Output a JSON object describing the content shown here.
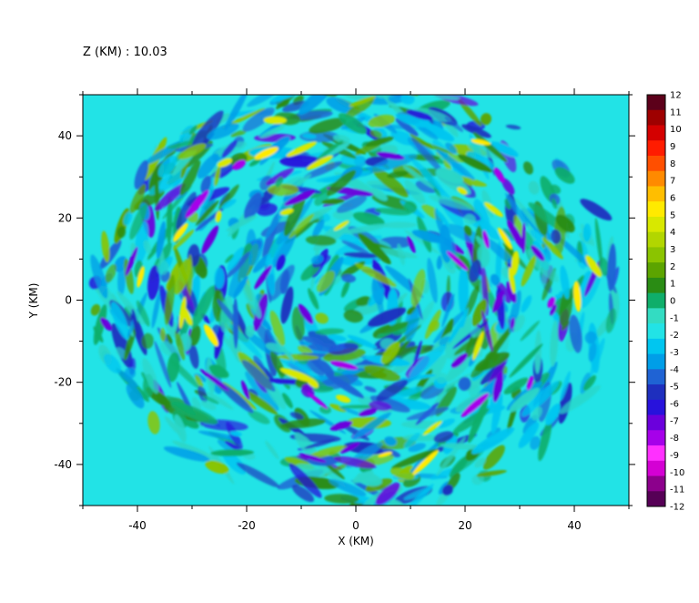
{
  "header": {
    "label": "Z (KM) : 10.03"
  },
  "chart_data": {
    "type": "heatmap",
    "title": "Z (KM) : 10.03",
    "xlabel": "X (KM)",
    "ylabel": "Y (KM)",
    "xlim": [
      -50,
      50
    ],
    "ylim": [
      -50,
      50
    ],
    "x_ticks": [
      -40,
      -20,
      0,
      20,
      40
    ],
    "y_ticks": [
      -40,
      -20,
      0,
      20,
      40
    ],
    "grid": false,
    "colorbar": {
      "min": -12,
      "max": 12,
      "labels": [
        12,
        11,
        10,
        9,
        8,
        7,
        6,
        5,
        4,
        3,
        2,
        1,
        0,
        -1,
        -2,
        -3,
        -4,
        -5,
        -6,
        -7,
        -8,
        -9,
        -10,
        -11,
        -12
      ],
      "colors": [
        "#5c001a",
        "#9e0000",
        "#d40000",
        "#ff1c00",
        "#ff4f00",
        "#ff8a00",
        "#ffbe00",
        "#ffea00",
        "#d8e800",
        "#b2d600",
        "#8bc400",
        "#5ca400",
        "#2a8c14",
        "#0fae6a",
        "#33dcc2",
        "#22e3e6",
        "#00c6f0",
        "#009ee8",
        "#1f63d4",
        "#1e2fbe",
        "#2812dc",
        "#6b00dc",
        "#a600ea",
        "#ff30ff",
        "#d400d4",
        "#8c008c",
        "#560056"
      ]
    },
    "field_description_values": {
      "dominant_level": 0,
      "positive_features": [
        "green filaments (1 to 4)",
        "yellow streaks (5 to 6)"
      ],
      "negative_features": [
        "blue streaks (-2 to -5)",
        "purple cores (-6 to -7)"
      ]
    }
  }
}
